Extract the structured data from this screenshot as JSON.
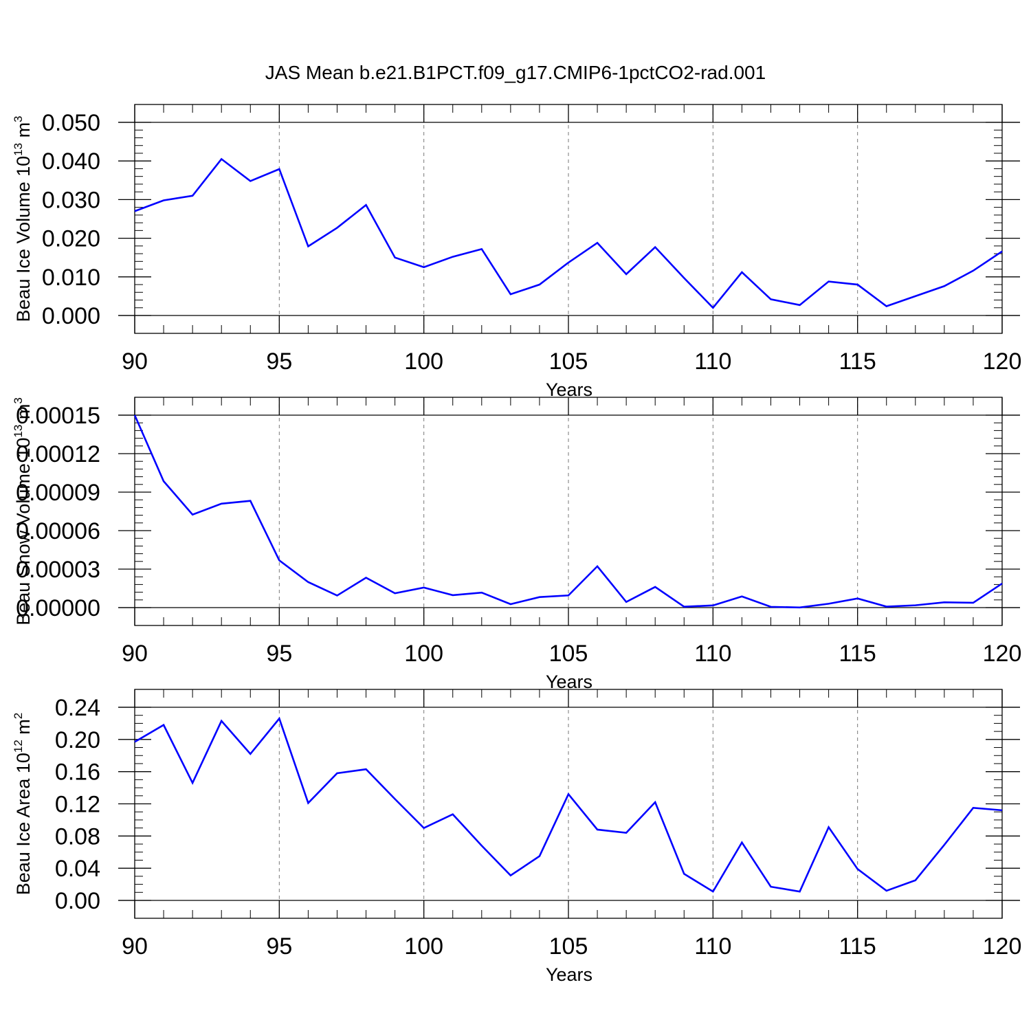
{
  "title": "JAS Mean b.e21.B1PCT.f09_g17.CMIP6-1pctCO2-rad.001",
  "colors": {
    "line": "#0000ff",
    "axis": "#000000",
    "grid": "#777777",
    "background": "#ffffff"
  },
  "chart_data": [
    {
      "type": "line",
      "xlabel": "Years",
      "ylabel": {
        "prefix": "Beau Ice Volume 10",
        "exponent": "13",
        "unit": " m",
        "unit_exponent": "3"
      },
      "xlim": [
        90,
        120
      ],
      "ylim": [
        0,
        0.05
      ],
      "x_ticks": [
        "90",
        "95",
        "100",
        "105",
        "110",
        "115",
        "120"
      ],
      "y_ticks": [
        "0.000",
        "0.010",
        "0.020",
        "0.030",
        "0.040",
        "0.050"
      ],
      "x": [
        90,
        91,
        92,
        93,
        94,
        95,
        96,
        97,
        98,
        99,
        100,
        101,
        102,
        103,
        104,
        105,
        106,
        107,
        108,
        109,
        110,
        111,
        112,
        113,
        114,
        115,
        116,
        117,
        118,
        119,
        120
      ],
      "series": [
        {
          "values": [
            0.027,
            0.0298,
            0.031,
            0.0405,
            0.0348,
            0.0379,
            0.0179,
            0.0227,
            0.0286,
            0.015,
            0.0125,
            0.0152,
            0.0172,
            0.0055,
            0.008,
            0.0137,
            0.0188,
            0.0107,
            0.0177,
            0.0097,
            0.002,
            0.0112,
            0.0042,
            0.0027,
            0.0088,
            0.008,
            0.0024,
            0.005,
            0.0076,
            0.0116,
            0.0166
          ]
        }
      ],
      "grid": "dashed vertical lines at major x ticks"
    },
    {
      "type": "line",
      "xlabel": "Years",
      "ylabel": {
        "prefix": "Beau Snow Volume 10",
        "exponent": "13",
        "unit": " m",
        "unit_exponent": "3"
      },
      "xlim": [
        90,
        120
      ],
      "ylim": [
        0,
        0.00015
      ],
      "x_ticks": [
        "90",
        "95",
        "100",
        "105",
        "110",
        "115",
        "120"
      ],
      "y_ticks": [
        "0.00000",
        "0.00003",
        "0.00006",
        "0.00009",
        "0.00012",
        "0.00015"
      ],
      "x": [
        90,
        91,
        92,
        93,
        94,
        95,
        96,
        97,
        98,
        99,
        100,
        101,
        102,
        103,
        104,
        105,
        106,
        107,
        108,
        109,
        110,
        111,
        112,
        113,
        114,
        115,
        116,
        117,
        118,
        119,
        120
      ],
      "series": [
        {
          "values": [
            0.00015,
            9.85e-05,
            7.25e-05,
            8.1e-05,
            8.32e-05,
            3.68e-05,
            1.99e-05,
            9.4e-06,
            2.33e-05,
            1.12e-05,
            1.56e-05,
            9.7e-06,
            1.17e-05,
            2.7e-06,
            8.2e-06,
            9.5e-06,
            3.22e-05,
            4.4e-06,
            1.61e-05,
            7e-07,
            1.7e-06,
            8.7e-06,
            6e-07,
            1e-07,
            3e-06,
            7.1e-06,
            8e-07,
            1.8e-06,
            4.1e-06,
            3.8e-06,
            1.88e-05
          ]
        }
      ],
      "grid": "dashed vertical lines at major x ticks"
    },
    {
      "type": "line",
      "xlabel": "Years",
      "ylabel": {
        "prefix": "Beau Ice Area 10",
        "exponent": "12",
        "unit": " m",
        "unit_exponent": "2"
      },
      "xlim": [
        90,
        120
      ],
      "ylim": [
        0,
        0.24
      ],
      "x_ticks": [
        "90",
        "95",
        "100",
        "105",
        "110",
        "115",
        "120"
      ],
      "y_ticks": [
        "0.00",
        "0.04",
        "0.08",
        "0.12",
        "0.16",
        "0.20",
        "0.24"
      ],
      "x": [
        90,
        91,
        92,
        93,
        94,
        95,
        96,
        97,
        98,
        99,
        100,
        101,
        102,
        103,
        104,
        105,
        106,
        107,
        108,
        109,
        110,
        111,
        112,
        113,
        114,
        115,
        116,
        117,
        118,
        119,
        120
      ],
      "series": [
        {
          "values": [
            0.197,
            0.218,
            0.146,
            0.223,
            0.182,
            0.226,
            0.121,
            0.158,
            0.163,
            0.126,
            0.09,
            0.107,
            0.068,
            0.031,
            0.055,
            0.132,
            0.088,
            0.084,
            0.122,
            0.033,
            0.011,
            0.072,
            0.017,
            0.011,
            0.091,
            0.039,
            0.012,
            0.025,
            0.069,
            0.115,
            0.112
          ]
        }
      ],
      "grid": "dashed vertical lines at major x ticks"
    }
  ]
}
